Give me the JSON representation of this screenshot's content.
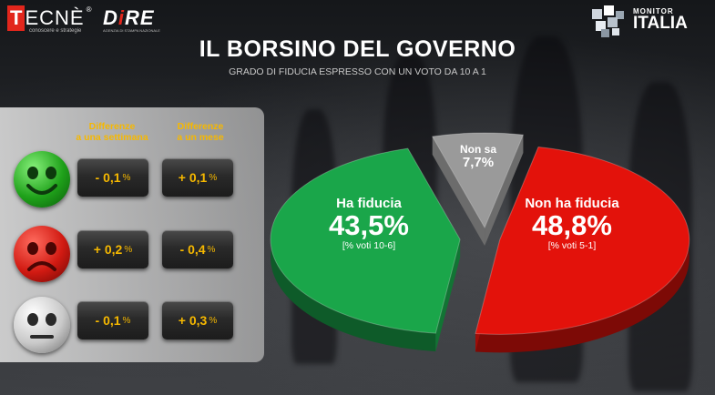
{
  "brand": {
    "tecne_t": "T",
    "tecne_rest": "ECNÈ",
    "tecne_reg": "®",
    "tecne_sub": "conoscere e strategie",
    "dire_d": "D",
    "dire_i": "i",
    "dire_re": "RE",
    "dire_sub": "AGENZIA DI STAMPA NAZIONALE",
    "monitor_line1": "MONITOR",
    "monitor_line2": "ITALIA"
  },
  "title": "IL BORSINO DEL GOVERNO",
  "subtitle": "GRADO DI FIDUCIA ESPRESSO CON UN VOTO DA 10  A 1",
  "table": {
    "headers": [
      {
        "line1": "Differenze",
        "line2": "a una settimana"
      },
      {
        "line1": "Differenze",
        "line2": "a un mese"
      }
    ],
    "rows": [
      {
        "face": "happy-face-icon",
        "week": "- 0,1",
        "month": "+ 0,1"
      },
      {
        "face": "sad-face-icon",
        "week": "+ 0,2",
        "month": "- 0,4"
      },
      {
        "face": "neutral-face-icon",
        "week": "- 0,1",
        "month": "+ 0,3"
      }
    ],
    "unit": "%"
  },
  "chart_data": {
    "type": "pie",
    "slices": [
      {
        "name": "Ha fiducia",
        "value": 43.5,
        "label": "43,5%",
        "note": "[% voti 10-6]",
        "color": "#1aa64a"
      },
      {
        "name": "Non sa",
        "value": 7.7,
        "label": "7,7%",
        "note": "",
        "color": "#9a9a9a"
      },
      {
        "name": "Non ha fiducia",
        "value": 48.8,
        "label": "48,8%",
        "note": "[% voti 5-1]",
        "color": "#e3120b"
      }
    ]
  }
}
